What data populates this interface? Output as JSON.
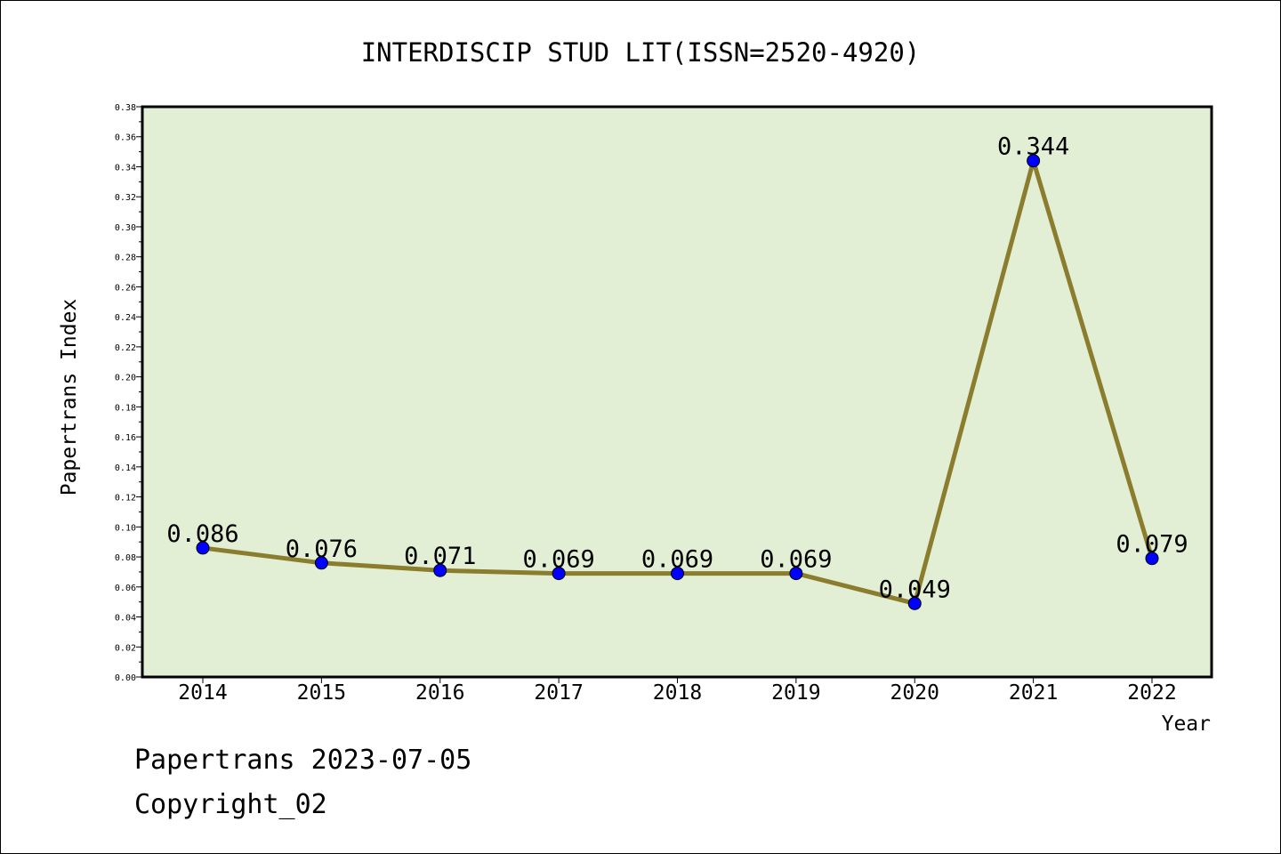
{
  "chart_data": {
    "type": "line",
    "title": "INTERDISCIP STUD LIT(ISSN=2520-4920)",
    "xlabel": "Year",
    "ylabel": "Papertrans Index",
    "categories": [
      "2014",
      "2015",
      "2016",
      "2017",
      "2018",
      "2019",
      "2020",
      "2021",
      "2022"
    ],
    "series": [
      {
        "name": "Papertrans Index",
        "values": [
          0.086,
          0.076,
          0.071,
          0.069,
          0.069,
          0.069,
          0.049,
          0.344,
          0.079
        ],
        "data_labels": [
          "0.086",
          "0.076",
          "0.071",
          "0.069",
          "0.069",
          "0.069",
          "0.049",
          "0.344",
          "0.079"
        ]
      }
    ],
    "ylim": [
      0,
      0.38
    ],
    "y_ticks": [
      "0.00",
      "0.02",
      "0.04",
      "0.06",
      "0.08",
      "0.10",
      "0.12",
      "0.14",
      "0.16",
      "0.18",
      "0.20",
      "0.22",
      "0.24",
      "0.26",
      "0.28",
      "0.30",
      "0.32",
      "0.34",
      "0.36",
      "0.38"
    ],
    "grid": false,
    "legend": "none"
  },
  "colors": {
    "plot_background": "#e2efd5",
    "line": "#8b7d2e",
    "marker": "#0000ff"
  },
  "footer": {
    "date_line": "Papertrans 2023-07-05",
    "copyright_line": "Copyright_02"
  }
}
